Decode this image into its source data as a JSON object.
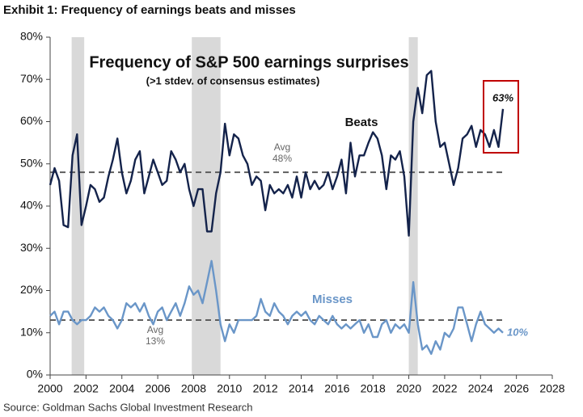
{
  "chart_data": {
    "type": "line",
    "header": "Exhibit 1: Frequency of earnings beats and misses",
    "title": "Frequency of S&P 500 earnings surprises",
    "subtitle": "(>1 stdev. of consensus estimates)",
    "source": "Source: Goldman Sachs Global Investment Research",
    "x": [
      2000,
      2000.25,
      2000.5,
      2000.75,
      2001,
      2001.25,
      2001.5,
      2001.75,
      2002,
      2002.25,
      2002.5,
      2002.75,
      2003,
      2003.25,
      2003.5,
      2003.75,
      2004,
      2004.25,
      2004.5,
      2004.75,
      2005,
      2005.25,
      2005.5,
      2005.75,
      2006,
      2006.25,
      2006.5,
      2006.75,
      2007,
      2007.25,
      2007.5,
      2007.75,
      2008,
      2008.25,
      2008.5,
      2008.75,
      2009,
      2009.25,
      2009.5,
      2009.75,
      2010,
      2010.25,
      2010.5,
      2010.75,
      2011,
      2011.25,
      2011.5,
      2011.75,
      2012,
      2012.25,
      2012.5,
      2012.75,
      2013,
      2013.25,
      2013.5,
      2013.75,
      2014,
      2014.25,
      2014.5,
      2014.75,
      2015,
      2015.25,
      2015.5,
      2015.75,
      2016,
      2016.25,
      2016.5,
      2016.75,
      2017,
      2017.25,
      2017.5,
      2017.75,
      2018,
      2018.25,
      2018.5,
      2018.75,
      2019,
      2019.25,
      2019.5,
      2019.75,
      2020,
      2020.25,
      2020.5,
      2020.75,
      2021,
      2021.25,
      2021.5,
      2021.75,
      2022,
      2022.25,
      2022.5,
      2022.75,
      2023,
      2023.25,
      2023.5,
      2023.75,
      2024,
      2024.25,
      2024.5,
      2024.75,
      2025,
      2025.25
    ],
    "series": [
      {
        "name": "Beats",
        "color": "#14234b",
        "end_label": "63%",
        "values": [
          45,
          49,
          46,
          35.5,
          35,
          52,
          57,
          35.5,
          40,
          45,
          44,
          41,
          42,
          47,
          51,
          56,
          48,
          43,
          46,
          51,
          53,
          43,
          47,
          51,
          48,
          45,
          46,
          53,
          51,
          48,
          50,
          44,
          40,
          44,
          44,
          34,
          34,
          43,
          48,
          59.5,
          52,
          57,
          56,
          52,
          50,
          45,
          47,
          46,
          39,
          45,
          43,
          44,
          43,
          45,
          42,
          47,
          42,
          48,
          44,
          46,
          44,
          45,
          48,
          44,
          47,
          51,
          43,
          55,
          47,
          52,
          52,
          55,
          57.5,
          56,
          52,
          44,
          52,
          51,
          53,
          47,
          33,
          60,
          68,
          62,
          71,
          72,
          60,
          54,
          55,
          50,
          45,
          49,
          56,
          57,
          59,
          54,
          58,
          57,
          54,
          58,
          54,
          63
        ]
      },
      {
        "name": "Misses",
        "color": "#6a96c8",
        "end_label": "10%",
        "values": [
          14,
          15,
          12,
          15,
          15,
          13,
          12,
          13,
          13,
          14,
          16,
          15,
          16,
          14,
          13,
          11,
          13,
          17,
          16,
          17,
          15,
          17,
          14,
          12,
          15,
          16,
          13,
          15,
          17,
          14,
          17,
          21,
          19,
          20,
          17,
          22,
          27,
          20,
          12,
          8,
          12,
          10,
          13,
          13,
          13,
          13,
          14,
          18,
          15,
          14,
          17,
          15,
          14,
          12,
          14,
          15,
          14,
          15,
          13,
          12,
          14,
          13,
          12,
          14,
          12,
          11,
          12,
          11,
          12,
          13,
          10,
          12,
          9,
          9,
          12,
          13,
          10,
          12,
          11,
          12,
          10,
          22,
          12,
          6,
          7,
          5,
          8,
          6,
          10,
          9,
          11,
          16,
          16,
          12,
          8,
          12,
          15,
          12,
          11,
          10,
          11,
          10
        ]
      }
    ],
    "averages": [
      {
        "text": "Avg",
        "value": 48,
        "label": "48%"
      },
      {
        "text": "Avg",
        "value": 13,
        "label": "13%"
      }
    ],
    "recessions": [
      [
        2001.2,
        2001.9
      ],
      [
        2007.9,
        2009.5
      ],
      [
        2020.0,
        2020.5
      ]
    ],
    "recession_color": "#d9d9d9",
    "xlim": [
      2000,
      2028
    ],
    "xticks": [
      2000,
      2002,
      2004,
      2006,
      2008,
      2010,
      2012,
      2014,
      2016,
      2018,
      2020,
      2022,
      2024,
      2026,
      2028
    ],
    "ylim": [
      0,
      80
    ],
    "yticks": [
      {
        "value": 0,
        "label": "0%"
      },
      {
        "value": 10,
        "label": "10%"
      },
      {
        "value": 20,
        "label": "20%"
      },
      {
        "value": 30,
        "label": "30%"
      },
      {
        "value": 40,
        "label": "40%"
      },
      {
        "value": 50,
        "label": "50%"
      },
      {
        "value": 60,
        "label": "60%"
      },
      {
        "value": 70,
        "label": "70%"
      },
      {
        "value": 80,
        "label": "80%"
      }
    ],
    "grid": false
  }
}
